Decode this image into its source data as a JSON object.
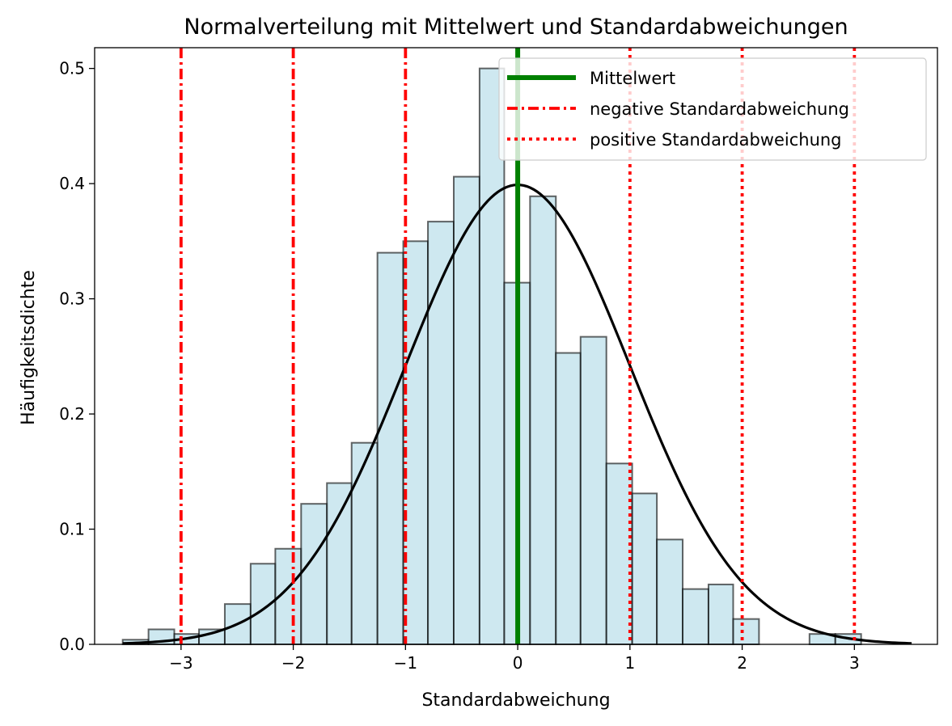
{
  "chart_data": {
    "type": "bar",
    "title": "Normalverteilung mit Mittelwert und Standardabweichungen",
    "xlabel": "Standardabweichung",
    "ylabel": "Häufigkeitsdichte",
    "xlim": [
      -3.77,
      3.74
    ],
    "ylim": [
      0,
      0.518
    ],
    "xticks": [
      -3,
      -2,
      -1,
      0,
      1,
      2,
      3
    ],
    "xtick_labels": [
      "−3",
      "−2",
      "−1",
      "0",
      "1",
      "2",
      "3"
    ],
    "yticks": [
      0.0,
      0.1,
      0.2,
      0.3,
      0.4,
      0.5
    ],
    "ytick_labels": [
      "0.0",
      "0.1",
      "0.2",
      "0.3",
      "0.4",
      "0.5"
    ],
    "grid": false,
    "legend_position": "top-right",
    "histogram": {
      "bin_edges": [
        -3.52,
        -3.29,
        -3.06,
        -2.84,
        -2.61,
        -2.38,
        -2.16,
        -1.93,
        -1.7,
        -1.48,
        -1.25,
        -1.02,
        -0.8,
        -0.57,
        -0.34,
        -0.12,
        0.11,
        0.34,
        0.56,
        0.79,
        1.02,
        1.24,
        1.47,
        1.7,
        1.92,
        2.15,
        2.38,
        2.6,
        2.83,
        3.06,
        3.28,
        3.51
      ],
      "density": [
        0.004,
        0.013,
        0.009,
        0.013,
        0.035,
        0.07,
        0.083,
        0.122,
        0.14,
        0.175,
        0.34,
        0.35,
        0.367,
        0.406,
        0.5,
        0.314,
        0.389,
        0.253,
        0.267,
        0.157,
        0.131,
        0.091,
        0.048,
        0.052,
        0.022,
        0.0,
        0.0,
        0.009,
        0.009,
        0.0,
        0.0
      ],
      "fill_color": "#add8e6",
      "edge_color": "#000000"
    },
    "curve": {
      "label": "",
      "mean": 0,
      "std": 1,
      "color": "#000000"
    },
    "series": [
      {
        "name": "Mittelwert",
        "x": [
          0
        ],
        "color": "#008000",
        "style": "solid"
      },
      {
        "name": "negative Standardabweichung",
        "x": [
          -3,
          -2,
          -1
        ],
        "color": "#ff0000",
        "style": "dashdot"
      },
      {
        "name": "positive Standardabweichung",
        "x": [
          1,
          2,
          3
        ],
        "color": "#ff0000",
        "style": "dotted"
      }
    ]
  }
}
